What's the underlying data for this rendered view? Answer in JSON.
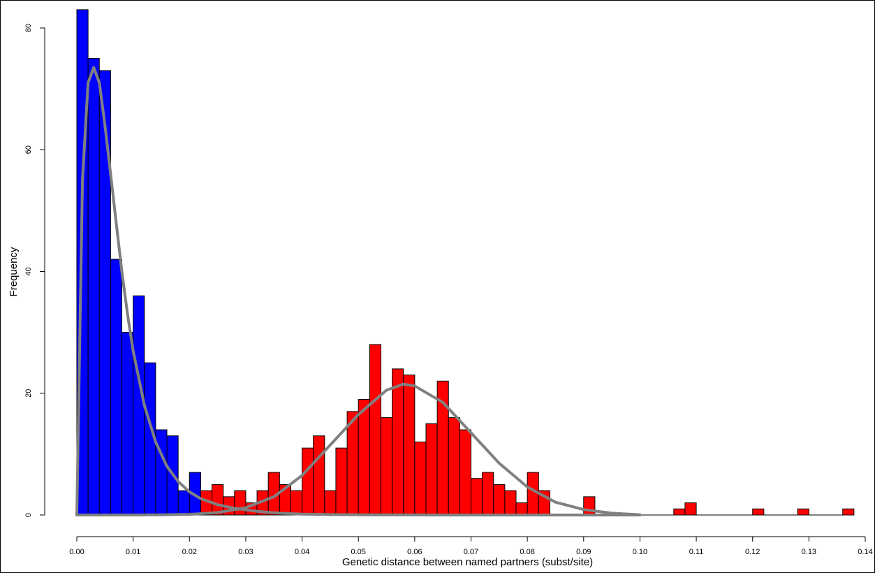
{
  "chart_data": {
    "type": "bar",
    "title": "",
    "xlabel": "Genetic distance between named partners (subst/site)",
    "ylabel": "Frequency",
    "xlim": [
      0.0,
      0.14
    ],
    "ylim": [
      0,
      80
    ],
    "bin_width": 0.002,
    "x_ticks": [
      0.0,
      0.01,
      0.02,
      0.03,
      0.04,
      0.05,
      0.06,
      0.07,
      0.08,
      0.09,
      0.1,
      0.11,
      0.12,
      0.13,
      0.14
    ],
    "x_tick_labels": [
      "0.00",
      "0.01",
      "0.02",
      "0.03",
      "0.04",
      "0.05",
      "0.06",
      "0.07",
      "0.08",
      "0.09",
      "0.10",
      "0.11",
      "0.12",
      "0.13",
      "0.14"
    ],
    "y_ticks": [
      0,
      20,
      40,
      60,
      80
    ],
    "y_tick_labels": [
      "0",
      "20",
      "40",
      "60",
      "80"
    ],
    "grid": false,
    "series": [
      {
        "color": "#0000ff",
        "bin_starts": [
          0.0,
          0.002,
          0.004,
          0.006,
          0.008,
          0.01,
          0.012,
          0.014,
          0.016,
          0.018,
          0.02
        ],
        "values": [
          83,
          75,
          73,
          42,
          30,
          36,
          25,
          14,
          13,
          4,
          7
        ]
      },
      {
        "color": "#ff0000",
        "bin_starts": [
          0.022,
          0.024,
          0.026,
          0.028,
          0.03,
          0.032,
          0.034,
          0.036,
          0.038,
          0.04,
          0.042,
          0.044,
          0.046,
          0.048,
          0.05,
          0.052,
          0.054,
          0.056,
          0.058,
          0.06,
          0.062,
          0.064,
          0.066,
          0.068,
          0.07,
          0.072,
          0.074,
          0.076,
          0.078,
          0.08,
          0.082,
          0.084,
          0.086,
          0.088,
          0.09,
          0.092,
          0.094,
          0.096,
          0.098,
          0.1,
          0.102,
          0.104,
          0.106,
          0.108,
          0.11,
          0.112,
          0.114,
          0.116,
          0.118,
          0.12,
          0.122,
          0.124,
          0.126,
          0.128,
          0.13,
          0.132,
          0.134,
          0.136
        ],
        "values": [
          4,
          5,
          3,
          4,
          2,
          4,
          7,
          5,
          4,
          11,
          13,
          4,
          11,
          17,
          19,
          28,
          16,
          24,
          23,
          12,
          15,
          22,
          16,
          14,
          6,
          7,
          5,
          4,
          2,
          7,
          4,
          0,
          0,
          0,
          3,
          0,
          0,
          0,
          0,
          0,
          0,
          0,
          1,
          2,
          0,
          0,
          0,
          0,
          0,
          1,
          0,
          0,
          0,
          1,
          0,
          0,
          0,
          1
        ]
      }
    ],
    "curves": [
      {
        "color": "#808080",
        "x": [
          0.0,
          0.001,
          0.002,
          0.003,
          0.004,
          0.005,
          0.006,
          0.007,
          0.008,
          0.009,
          0.01,
          0.012,
          0.014,
          0.016,
          0.018,
          0.02,
          0.022,
          0.025,
          0.028,
          0.032,
          0.036,
          0.04,
          0.045,
          0.05,
          0.06,
          0.07,
          0.08,
          0.09,
          0.1
        ],
        "y": [
          0,
          55,
          71,
          73.5,
          71,
          64,
          56,
          48,
          40,
          33,
          27,
          18,
          12,
          8,
          5.5,
          3.8,
          2.7,
          1.7,
          1.1,
          0.6,
          0.3,
          0.15,
          0.07,
          0.03,
          0.01,
          0,
          0,
          0,
          0
        ]
      },
      {
        "color": "#808080",
        "x": [
          0.0,
          0.01,
          0.015,
          0.02,
          0.025,
          0.03,
          0.035,
          0.04,
          0.045,
          0.05,
          0.055,
          0.058,
          0.06,
          0.065,
          0.07,
          0.075,
          0.08,
          0.085,
          0.09,
          0.095,
          0.1
        ],
        "y": [
          0,
          0,
          0.02,
          0.1,
          0.4,
          1.2,
          3.0,
          6.5,
          11.5,
          16.5,
          20.5,
          21.5,
          21.2,
          18.5,
          13.5,
          8.5,
          4.6,
          2.1,
          0.9,
          0.3,
          0.05
        ]
      }
    ]
  }
}
